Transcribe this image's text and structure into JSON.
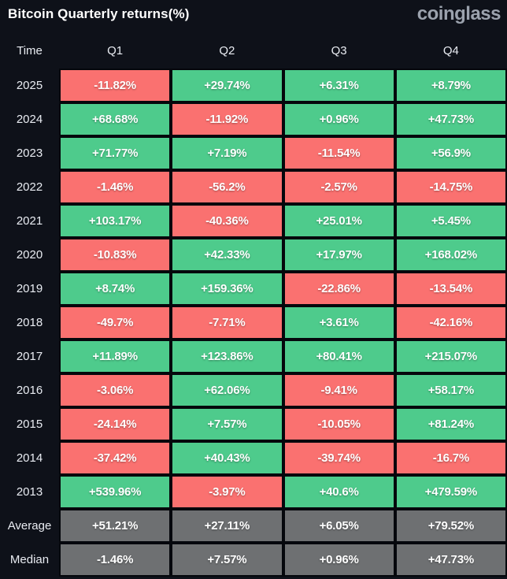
{
  "header": {
    "title": "Bitcoin Quarterly returns(%)",
    "logo": "coinglass"
  },
  "colors": {
    "positive": "#4ecb8c",
    "negative": "#fa7170",
    "neutral": "#6e7072",
    "background": "#0e1119",
    "grid_line": "#05070c",
    "cell_text": "#ffffff",
    "logo_text": "#9ba2ad"
  },
  "chart_data": {
    "type": "table",
    "title": "Bitcoin Quarterly returns(%)",
    "columns": [
      "Time",
      "Q1",
      "Q2",
      "Q3",
      "Q4"
    ],
    "rows": [
      {
        "label": "2025",
        "values": [
          "-11.82%",
          "+29.74%",
          "+6.31%",
          "+8.79%"
        ],
        "tones": [
          "neg",
          "pos",
          "pos",
          "pos"
        ]
      },
      {
        "label": "2024",
        "values": [
          "+68.68%",
          "-11.92%",
          "+0.96%",
          "+47.73%"
        ],
        "tones": [
          "pos",
          "neg",
          "pos",
          "pos"
        ]
      },
      {
        "label": "2023",
        "values": [
          "+71.77%",
          "+7.19%",
          "-11.54%",
          "+56.9%"
        ],
        "tones": [
          "pos",
          "pos",
          "neg",
          "pos"
        ]
      },
      {
        "label": "2022",
        "values": [
          "-1.46%",
          "-56.2%",
          "-2.57%",
          "-14.75%"
        ],
        "tones": [
          "neg",
          "neg",
          "neg",
          "neg"
        ]
      },
      {
        "label": "2021",
        "values": [
          "+103.17%",
          "-40.36%",
          "+25.01%",
          "+5.45%"
        ],
        "tones": [
          "pos",
          "neg",
          "pos",
          "pos"
        ]
      },
      {
        "label": "2020",
        "values": [
          "-10.83%",
          "+42.33%",
          "+17.97%",
          "+168.02%"
        ],
        "tones": [
          "neg",
          "pos",
          "pos",
          "pos"
        ]
      },
      {
        "label": "2019",
        "values": [
          "+8.74%",
          "+159.36%",
          "-22.86%",
          "-13.54%"
        ],
        "tones": [
          "pos",
          "pos",
          "neg",
          "neg"
        ]
      },
      {
        "label": "2018",
        "values": [
          "-49.7%",
          "-7.71%",
          "+3.61%",
          "-42.16%"
        ],
        "tones": [
          "neg",
          "neg",
          "pos",
          "neg"
        ]
      },
      {
        "label": "2017",
        "values": [
          "+11.89%",
          "+123.86%",
          "+80.41%",
          "+215.07%"
        ],
        "tones": [
          "pos",
          "pos",
          "pos",
          "pos"
        ]
      },
      {
        "label": "2016",
        "values": [
          "-3.06%",
          "+62.06%",
          "-9.41%",
          "+58.17%"
        ],
        "tones": [
          "neg",
          "pos",
          "neg",
          "pos"
        ]
      },
      {
        "label": "2015",
        "values": [
          "-24.14%",
          "+7.57%",
          "-10.05%",
          "+81.24%"
        ],
        "tones": [
          "neg",
          "pos",
          "neg",
          "pos"
        ]
      },
      {
        "label": "2014",
        "values": [
          "-37.42%",
          "+40.43%",
          "-39.74%",
          "-16.7%"
        ],
        "tones": [
          "neg",
          "pos",
          "neg",
          "neg"
        ]
      },
      {
        "label": "2013",
        "values": [
          "+539.96%",
          "-3.97%",
          "+40.6%",
          "+479.59%"
        ],
        "tones": [
          "pos",
          "neg",
          "pos",
          "pos"
        ]
      },
      {
        "label": "Average",
        "values": [
          "+51.21%",
          "+27.11%",
          "+6.05%",
          "+79.52%"
        ],
        "tones": [
          "neutral",
          "neutral",
          "neutral",
          "neutral"
        ]
      },
      {
        "label": "Median",
        "values": [
          "-1.46%",
          "+7.57%",
          "+0.96%",
          "+47.73%"
        ],
        "tones": [
          "neutral",
          "neutral",
          "neutral",
          "neutral"
        ]
      }
    ]
  }
}
